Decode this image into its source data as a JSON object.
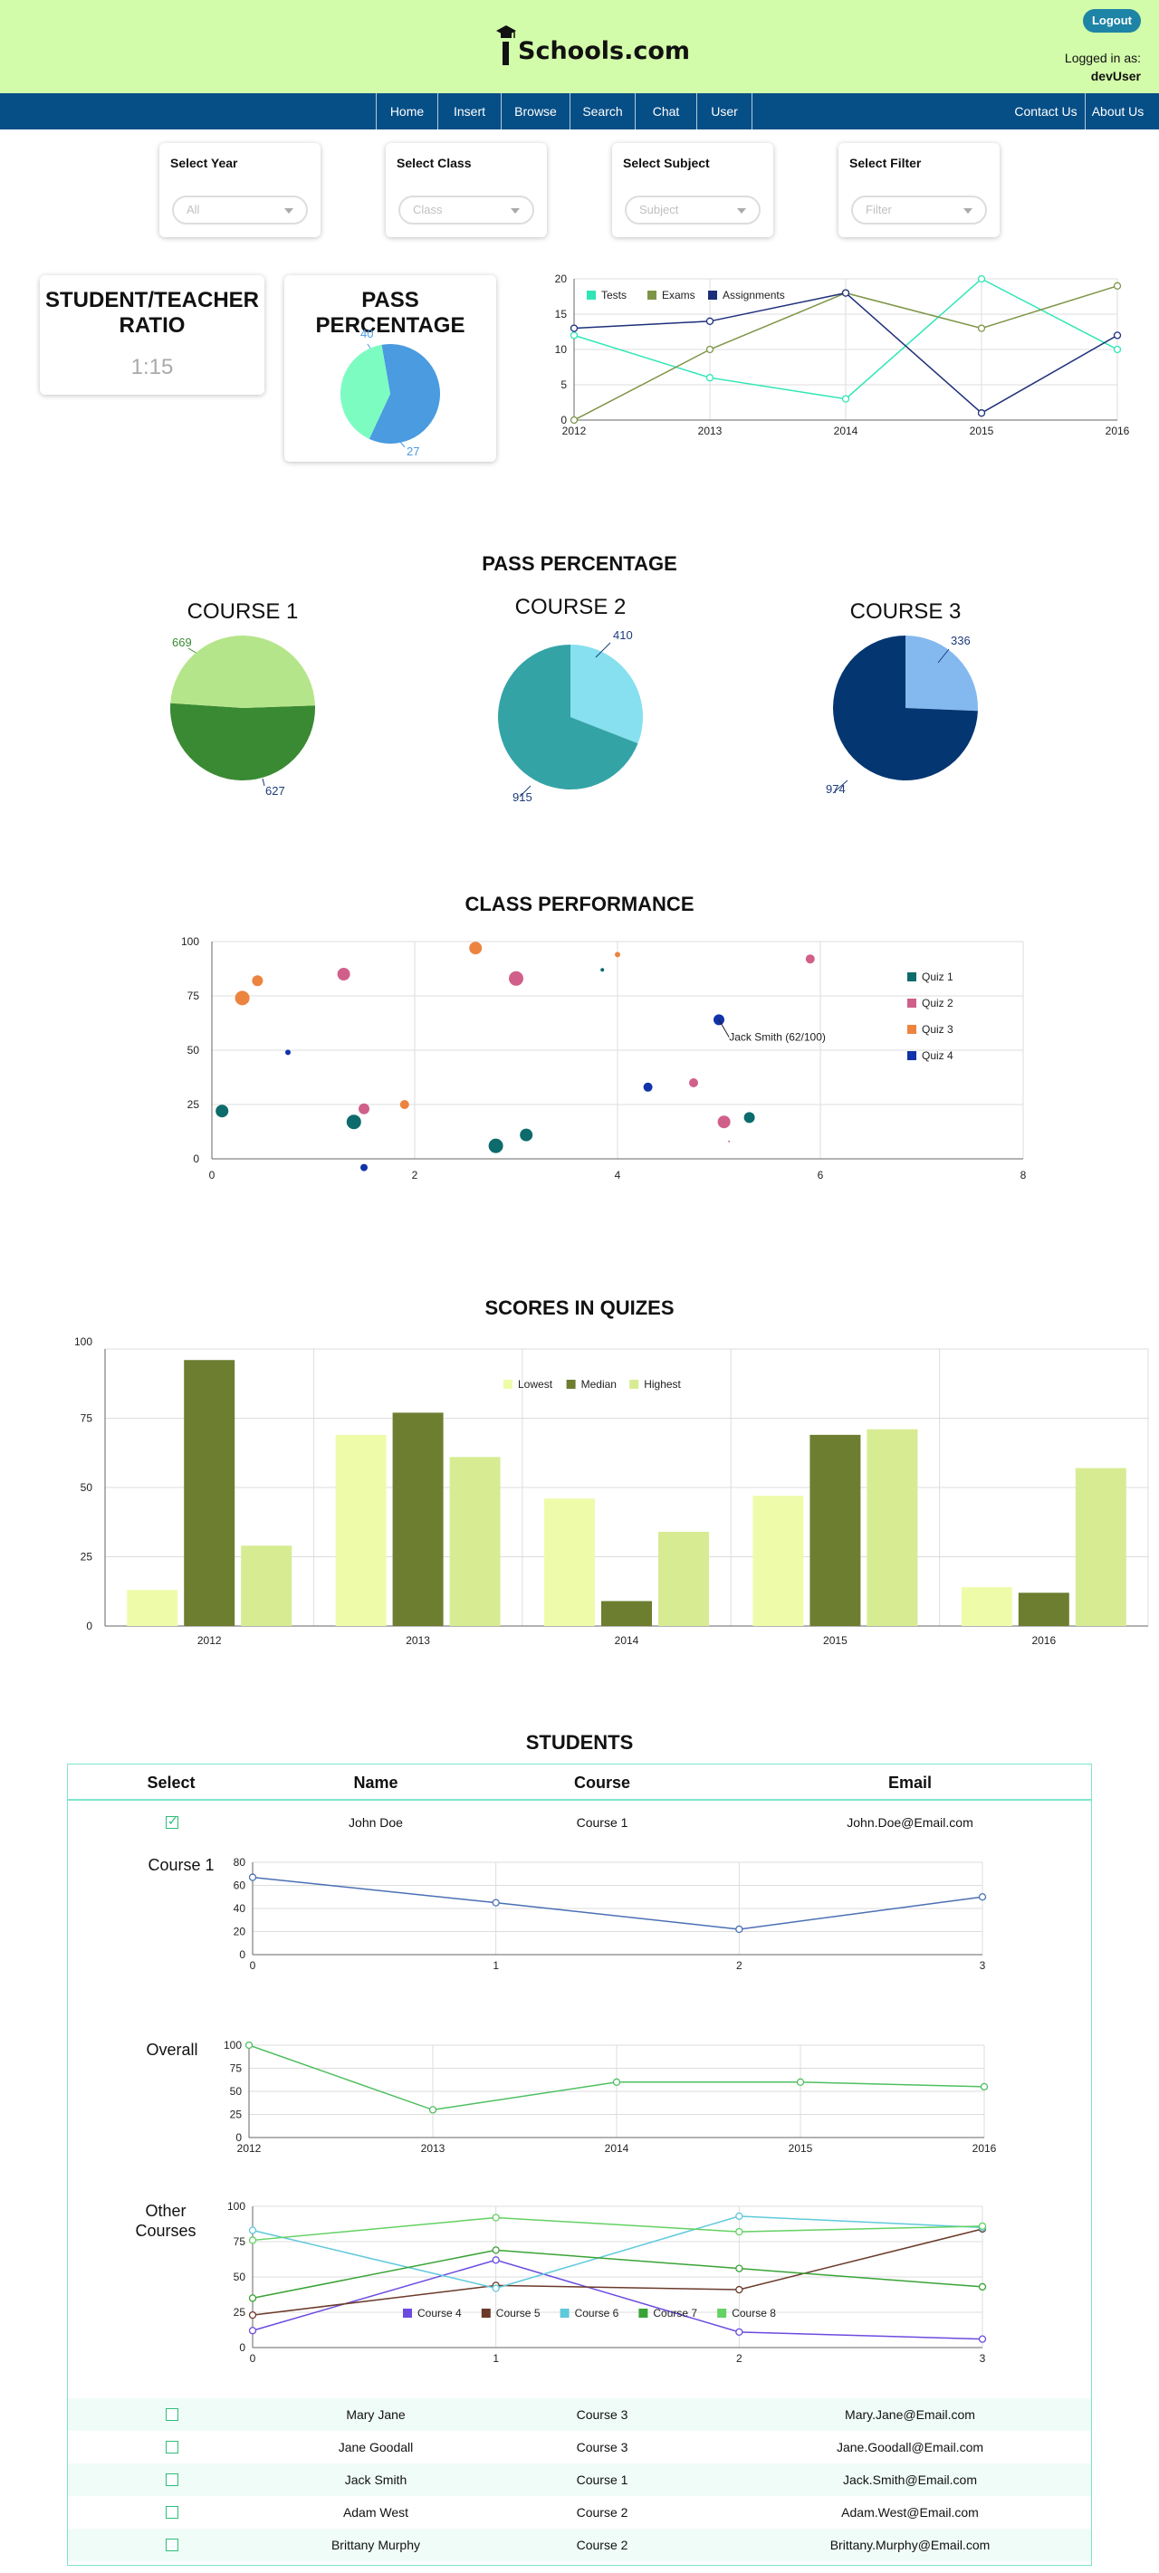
{
  "header": {
    "logo_text": "Schools.com",
    "logout_label": "Logout",
    "logged_in_label": "Logged in as:",
    "username": "devUser",
    "bg_color": "#d2fca9"
  },
  "nav": {
    "items": [
      "Home",
      "Insert",
      "Browse",
      "Search",
      "Chat",
      "User"
    ],
    "right_items": [
      "Contact Us",
      "About Us"
    ],
    "bg_color": "#064e86"
  },
  "filters": [
    {
      "label": "Select Year",
      "placeholder": "All"
    },
    {
      "label": "Select Class",
      "placeholder": "Class"
    },
    {
      "label": "Select Subject",
      "placeholder": "Subject"
    },
    {
      "label": "Select Filter",
      "placeholder": "Filter"
    }
  ],
  "ratio_card": {
    "title": "STUDENT/TEACHER RATIO",
    "value": "1:15"
  },
  "pass_card": {
    "title": "PASS PERCENTAGE"
  },
  "sections": {
    "pass_percentage": "PASS PERCENTAGE",
    "class_performance": "CLASS PERFORMANCE",
    "scores": "SCORES IN  QUIZES",
    "students": "STUDENTS"
  },
  "courses": {
    "c1": "COURSE 1",
    "c2": "COURSE  2",
    "c3": "COURSE 3"
  },
  "chart_data": [
    {
      "type": "pie",
      "id": "pass-small",
      "values": [
        40,
        27
      ],
      "labels": [
        "40",
        "27"
      ],
      "colors": [
        "#4a9be0",
        "#7dfcc2"
      ]
    },
    {
      "type": "line",
      "id": "trend",
      "x": [
        2012,
        2013,
        2014,
        2015,
        2016
      ],
      "ylim": [
        0,
        20
      ],
      "yticks": [
        0,
        5,
        10,
        15,
        20
      ],
      "legend_position": "top-left",
      "series": [
        {
          "name": "Tests",
          "color": "#2ee6b5",
          "values": [
            12,
            6,
            3,
            20,
            10
          ]
        },
        {
          "name": "Exams",
          "color": "#7e9548",
          "values": [
            0,
            10,
            18,
            13,
            19
          ]
        },
        {
          "name": "Assignments",
          "color": "#1d2f7a",
          "values": [
            13,
            14,
            18,
            1,
            12
          ]
        }
      ]
    },
    {
      "type": "pie",
      "id": "course1",
      "values": [
        669,
        627
      ],
      "labels": [
        "669",
        "627"
      ],
      "colors": [
        "#3a8a33",
        "#b5e58a"
      ],
      "label_colors": [
        "#3a8a33",
        "#1d3b7a"
      ]
    },
    {
      "type": "pie",
      "id": "course2",
      "values": [
        410,
        915
      ],
      "labels": [
        "410",
        "915"
      ],
      "colors": [
        "#86e0ef",
        "#34a3a6"
      ],
      "label_colors": [
        "#1d3b7a",
        "#1d3b7a"
      ]
    },
    {
      "type": "pie",
      "id": "course3",
      "values": [
        336,
        974
      ],
      "labels": [
        "336",
        "974"
      ],
      "colors": [
        "#84b9ef",
        "#043671"
      ],
      "label_colors": [
        "#1d3b7a",
        "#1d3b7a"
      ]
    },
    {
      "type": "scatter",
      "id": "class-perf",
      "xlim": [
        0,
        8
      ],
      "ylim": [
        0,
        100
      ],
      "xticks": [
        0,
        2,
        4,
        6,
        8
      ],
      "yticks": [
        0,
        25,
        50,
        75,
        100
      ],
      "legend_position": "right",
      "annotation": "Jack Smith (62/100)",
      "series": [
        {
          "name": "Quiz 1",
          "color": "#0d6b6b",
          "points": [
            [
              0.1,
              22,
              7
            ],
            [
              1.4,
              17,
              8
            ],
            [
              2.8,
              6,
              8
            ],
            [
              3.1,
              11,
              7
            ],
            [
              3.85,
              87,
              2
            ],
            [
              5.3,
              19,
              6
            ]
          ]
        },
        {
          "name": "Quiz 2",
          "color": "#d0608a",
          "points": [
            [
              1.3,
              85,
              7
            ],
            [
              1.5,
              23,
              6
            ],
            [
              3.0,
              83,
              8
            ],
            [
              4.75,
              35,
              5
            ],
            [
              5.05,
              17,
              7
            ],
            [
              5.1,
              8,
              1
            ],
            [
              5.9,
              92,
              5
            ]
          ]
        },
        {
          "name": "Quiz 3",
          "color": "#ec8440",
          "points": [
            [
              0.3,
              74,
              8
            ],
            [
              0.45,
              82,
              6
            ],
            [
              1.9,
              25,
              5
            ],
            [
              2.6,
              97,
              7
            ],
            [
              4.0,
              94,
              3
            ]
          ]
        },
        {
          "name": "Quiz 4",
          "color": "#1232a9",
          "points": [
            [
              0.75,
              49,
              3
            ],
            [
              1.5,
              -4,
              4
            ],
            [
              4.3,
              33,
              5
            ],
            [
              5.0,
              64,
              6
            ]
          ]
        }
      ]
    },
    {
      "type": "bar",
      "id": "scores",
      "categories": [
        "2012",
        "2013",
        "2014",
        "2015",
        "2016"
      ],
      "ylim": [
        0,
        100
      ],
      "yticks": [
        0,
        25,
        50,
        75,
        100
      ],
      "legend_position": "top-center",
      "series": [
        {
          "name": "Lowest",
          "color": "#eefcaa",
          "values": [
            13,
            69,
            46,
            47,
            14
          ]
        },
        {
          "name": "Median",
          "color": "#6d7e30",
          "values": [
            96,
            77,
            9,
            69,
            12
          ]
        },
        {
          "name": "Highest",
          "color": "#d7ec92",
          "values": [
            29,
            61,
            34,
            71,
            57
          ]
        }
      ]
    },
    {
      "type": "line",
      "id": "student-course1",
      "x": [
        0,
        1,
        2,
        3
      ],
      "ylim": [
        0,
        80
      ],
      "yticks": [
        0,
        20,
        40,
        60,
        80
      ],
      "series": [
        {
          "name": "",
          "color": "#4b6fb5",
          "values": [
            67,
            45,
            22,
            50
          ]
        }
      ]
    },
    {
      "type": "line",
      "id": "student-overall",
      "x": [
        2012,
        2013,
        2014,
        2015,
        2016
      ],
      "ylim": [
        0,
        100
      ],
      "yticks": [
        0,
        25,
        50,
        75,
        100
      ],
      "series": [
        {
          "name": "",
          "color": "#4fbf61",
          "values": [
            100,
            30,
            60,
            60,
            55
          ]
        }
      ]
    },
    {
      "type": "line",
      "id": "student-other",
      "x": [
        0,
        1,
        2,
        3
      ],
      "ylim": [
        0,
        100
      ],
      "yticks": [
        0,
        25,
        50,
        75,
        100
      ],
      "legend_position": "bottom-center",
      "series": [
        {
          "name": "Course 4",
          "color": "#6c4be0",
          "values": [
            12,
            62,
            11,
            6
          ]
        },
        {
          "name": "Course 5",
          "color": "#6b3a2a",
          "values": [
            23,
            44,
            41,
            84
          ]
        },
        {
          "name": "Course 6",
          "color": "#5fc9db",
          "values": [
            83,
            42,
            93,
            85
          ]
        },
        {
          "name": "Course 7",
          "color": "#3aa336",
          "values": [
            35,
            69,
            56,
            43
          ]
        },
        {
          "name": "Course 8",
          "color": "#63d163",
          "values": [
            76,
            92,
            82,
            86
          ]
        }
      ]
    }
  ],
  "students": {
    "headers": [
      "Select",
      "Name",
      "Course",
      "Email"
    ],
    "expanded": {
      "name": "John Doe",
      "course": "Course 1",
      "email": "John.Doe@Email.com",
      "checked": true,
      "labels": [
        "Course 1",
        "Overall",
        "Other Courses"
      ]
    },
    "rows": [
      {
        "name": "Mary Jane",
        "course": "Course 3",
        "email": "Mary.Jane@Email.com"
      },
      {
        "name": "Jane Goodall",
        "course": "Course 3",
        "email": "Jane.Goodall@Email.com"
      },
      {
        "name": "Jack Smith",
        "course": "Course 1",
        "email": "Jack.Smith@Email.com"
      },
      {
        "name": "Adam West",
        "course": "Course 2",
        "email": "Adam.West@Email.com"
      },
      {
        "name": "Brittany Murphy",
        "course": "Course 2",
        "email": "Brittany.Murphy@Email.com"
      }
    ]
  }
}
